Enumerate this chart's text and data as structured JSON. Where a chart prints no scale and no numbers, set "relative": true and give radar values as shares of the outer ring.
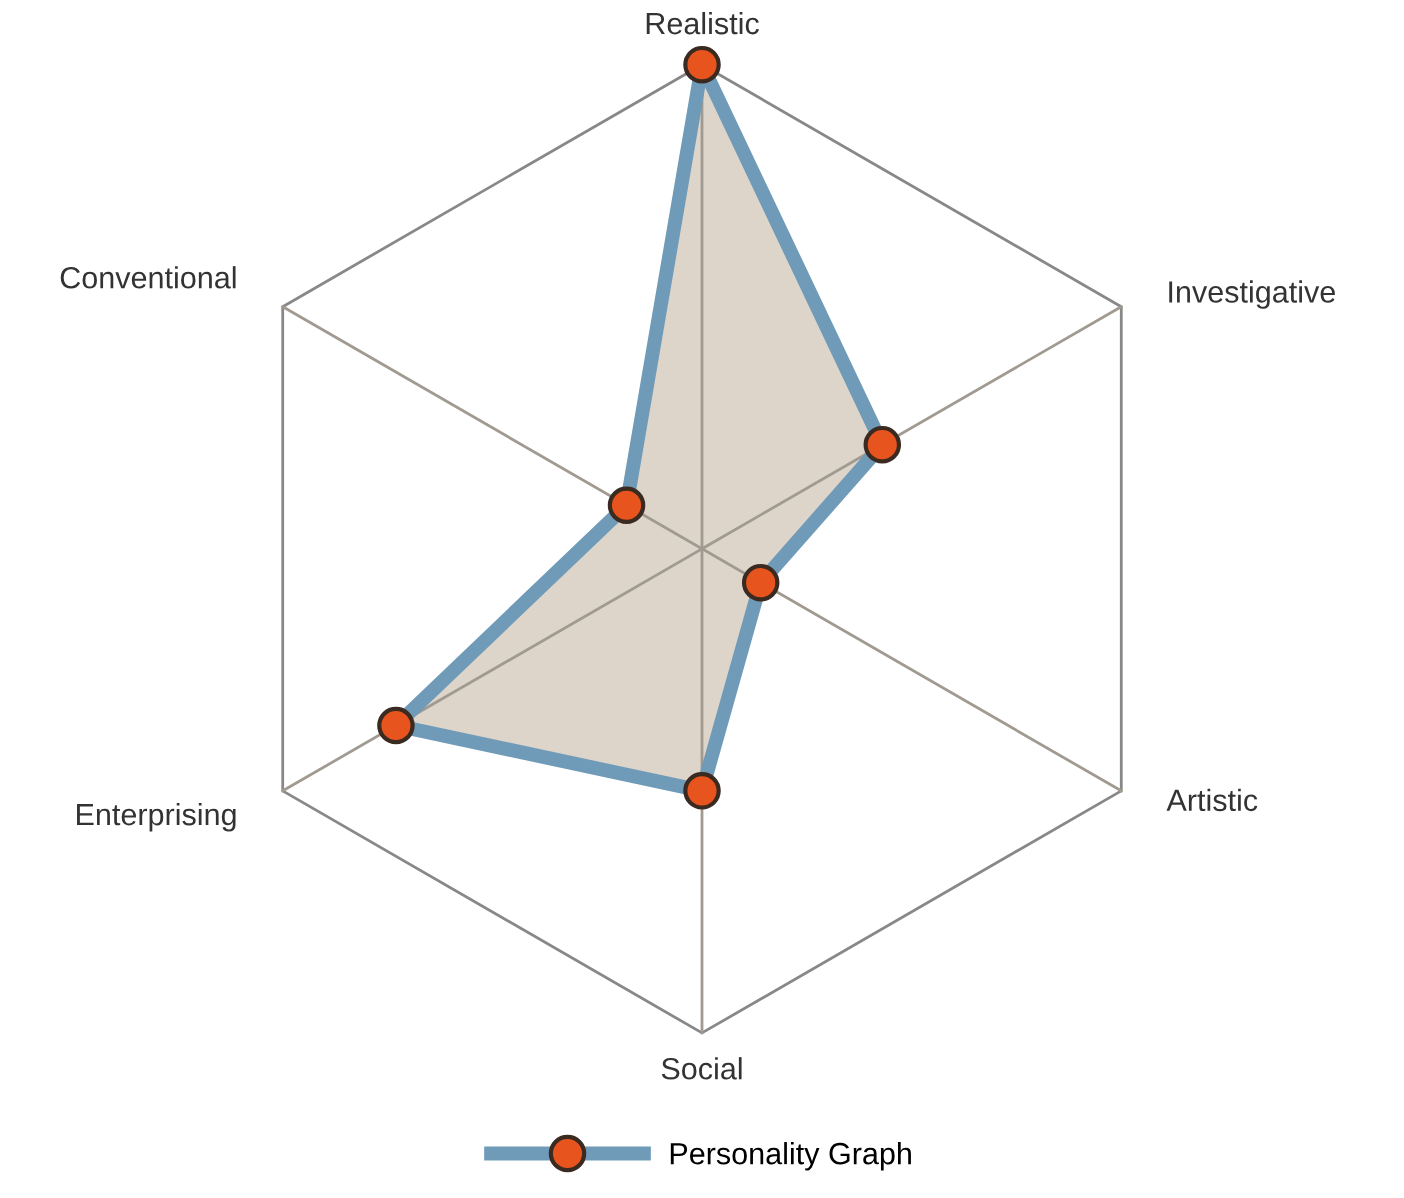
{
  "chart_data": {
    "type": "radar",
    "relative": true,
    "categories": [
      "Realistic",
      "Investigative",
      "Artistic",
      "Social",
      "Enterprising",
      "Conventional"
    ],
    "series": [
      {
        "name": "Personality Graph",
        "color": "#6f9bb8",
        "values": [
          1.0,
          0.43,
          0.14,
          0.5,
          0.73,
          0.18
        ]
      }
    ],
    "marker": "circle",
    "legend": "bottom"
  }
}
